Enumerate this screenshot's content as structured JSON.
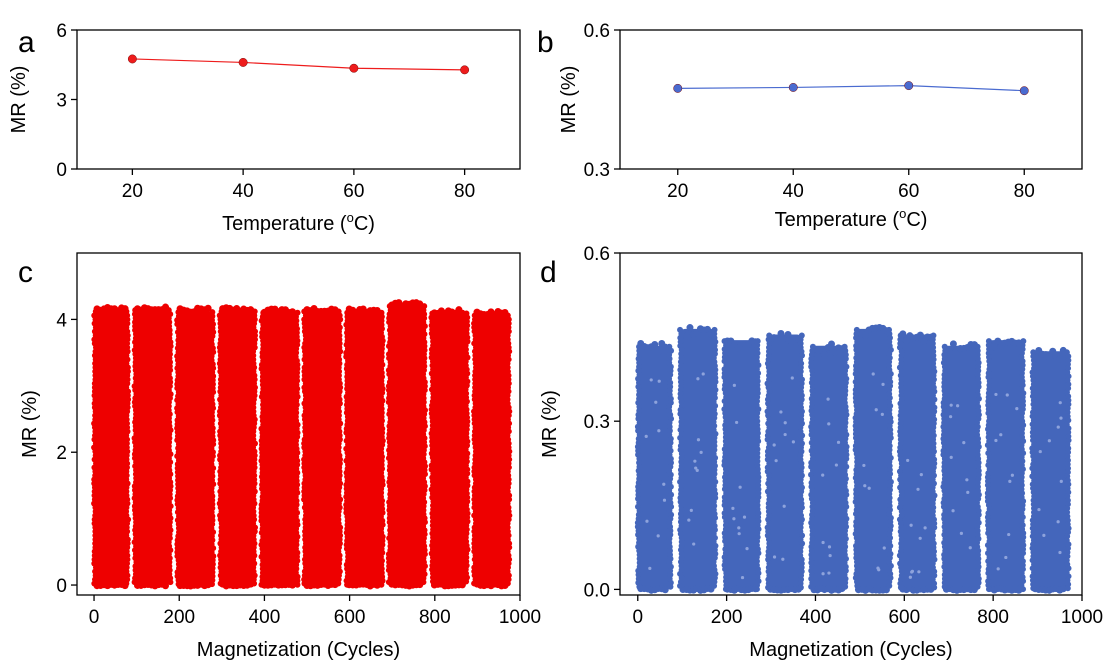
{
  "chart_data": [
    {
      "panel": "a",
      "type": "line",
      "xlabel": "Temperature (",
      "xlabel_sup": "o",
      "xlabel_unit": "C)",
      "ylabel": "MR (%)",
      "xlim": [
        10,
        90
      ],
      "ylim": [
        0,
        6
      ],
      "xticks": [
        "20",
        "40",
        "60",
        "80"
      ],
      "xtick_values": [
        20,
        40,
        60,
        80
      ],
      "yticks": [
        "0",
        "3",
        "6"
      ],
      "ytick_values": [
        0,
        3,
        6
      ],
      "x": [
        20,
        40,
        60,
        80
      ],
      "y": [
        4.75,
        4.6,
        4.35,
        4.28
      ],
      "color": "#ee1c1c",
      "grid": false
    },
    {
      "panel": "b",
      "type": "line",
      "xlabel": "Temperature (",
      "xlabel_sup": "o",
      "xlabel_unit": "C)",
      "ylabel": "MR (%)",
      "xlim": [
        10,
        90
      ],
      "ylim": [
        0.3,
        0.6
      ],
      "xticks": [
        "20",
        "40",
        "60",
        "80"
      ],
      "xtick_values": [
        20,
        40,
        60,
        80
      ],
      "yticks": [
        "0.3",
        "0.6"
      ],
      "ytick_values": [
        0.3,
        0.6
      ],
      "x": [
        20,
        40,
        60,
        80
      ],
      "y": [
        0.474,
        0.476,
        0.48,
        0.469
      ],
      "color": "#4a6bd0",
      "grid": false
    },
    {
      "panel": "c",
      "type": "scatter",
      "xlabel": "Magnetization (Cycles)",
      "xlabel_sup": "",
      "xlabel_unit": "",
      "ylabel": "MR (%)",
      "xlim": [
        -40,
        1000
      ],
      "ylim": [
        -0.15,
        5
      ],
      "xticks": [
        "0",
        "200",
        "400",
        "600",
        "800",
        "1000"
      ],
      "xtick_values": [
        0,
        200,
        400,
        600,
        800,
        1000
      ],
      "yticks": [
        "0",
        "2",
        "4"
      ],
      "ytick_values": [
        0,
        2,
        4
      ],
      "blocks": [
        {
          "x_start": 0,
          "x_end": 80,
          "y_max": 4.18
        },
        {
          "x_start": 95,
          "x_end": 180,
          "y_max": 4.2
        },
        {
          "x_start": 195,
          "x_end": 280,
          "y_max": 4.17
        },
        {
          "x_start": 295,
          "x_end": 378,
          "y_max": 4.18
        },
        {
          "x_start": 393,
          "x_end": 478,
          "y_max": 4.16
        },
        {
          "x_start": 493,
          "x_end": 578,
          "y_max": 4.18
        },
        {
          "x_start": 592,
          "x_end": 678,
          "y_max": 4.16
        },
        {
          "x_start": 692,
          "x_end": 777,
          "y_max": 4.26
        },
        {
          "x_start": 792,
          "x_end": 877,
          "y_max": 4.15
        },
        {
          "x_start": 892,
          "x_end": 975,
          "y_max": 4.12
        }
      ],
      "color": "#ee0000",
      "grid": false
    },
    {
      "panel": "d",
      "type": "scatter",
      "xlabel": "Magnetization (Cycles)",
      "xlabel_sup": "",
      "xlabel_unit": "",
      "ylabel": "MR (%)",
      "xlim": [
        -40,
        1000
      ],
      "ylim": [
        -0.01,
        0.6
      ],
      "xticks": [
        "0",
        "200",
        "400",
        "600",
        "800",
        "1000"
      ],
      "xtick_values": [
        0,
        200,
        400,
        600,
        800,
        1000
      ],
      "yticks": [
        "0.0",
        "0.3",
        "0.6"
      ],
      "ytick_values": [
        0.0,
        0.3,
        0.6
      ],
      "blocks": [
        {
          "x_start": 0,
          "x_end": 75,
          "y_max": 0.44
        },
        {
          "x_start": 95,
          "x_end": 175,
          "y_max": 0.47
        },
        {
          "x_start": 195,
          "x_end": 272,
          "y_max": 0.45
        },
        {
          "x_start": 292,
          "x_end": 370,
          "y_max": 0.46
        },
        {
          "x_start": 390,
          "x_end": 470,
          "y_max": 0.44
        },
        {
          "x_start": 490,
          "x_end": 570,
          "y_max": 0.47
        },
        {
          "x_start": 590,
          "x_end": 668,
          "y_max": 0.46
        },
        {
          "x_start": 688,
          "x_end": 768,
          "y_max": 0.44
        },
        {
          "x_start": 788,
          "x_end": 868,
          "y_max": 0.45
        },
        {
          "x_start": 888,
          "x_end": 970,
          "y_max": 0.43
        }
      ],
      "color": "#4466bb",
      "grid": false
    }
  ]
}
